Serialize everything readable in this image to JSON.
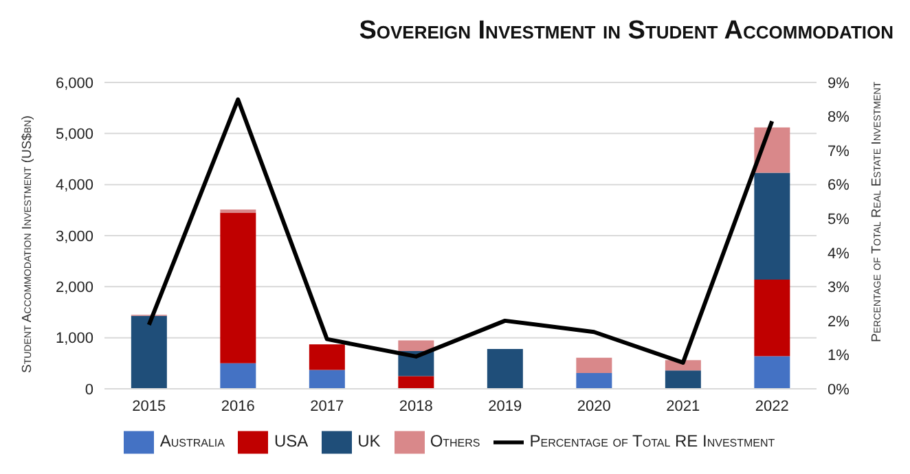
{
  "chart_data": {
    "type": "bar",
    "title": "Sovereign Investment in Student Accommodation",
    "ylabel": "Student Accommodation Investment (US$bn)",
    "y2label": "Percentage of Total Real Estate Investment",
    "categories": [
      "2015",
      "2016",
      "2017",
      "2018",
      "2019",
      "2020",
      "2021",
      "2022"
    ],
    "stacked": true,
    "series": [
      {
        "name": "Australia",
        "color": "#4472c4",
        "values": [
          0,
          500,
          370,
          0,
          0,
          310,
          0,
          640
        ]
      },
      {
        "name": "USA",
        "color": "#c00000",
        "values": [
          0,
          2950,
          500,
          250,
          0,
          0,
          0,
          1500
        ]
      },
      {
        "name": "UK",
        "color": "#1f4e79",
        "values": [
          1430,
          0,
          0,
          490,
          780,
          0,
          360,
          2090
        ]
      },
      {
        "name": "Others",
        "color": "#d9888a",
        "values": [
          20,
          60,
          0,
          210,
          0,
          300,
          200,
          890
        ]
      },
      {
        "name": "Percentage of Total RE Investment",
        "type": "line",
        "axis": "y2",
        "color": "#000000",
        "values": [
          1.88,
          8.5,
          1.46,
          0.95,
          2.0,
          1.67,
          0.77,
          7.86
        ]
      }
    ],
    "ylim": [
      0,
      6000
    ],
    "yticks": [
      {
        "value": 0,
        "label": "0"
      },
      {
        "value": 1000,
        "label": "1,000"
      },
      {
        "value": 2000,
        "label": "2,000"
      },
      {
        "value": 3000,
        "label": "3,000"
      },
      {
        "value": 4000,
        "label": "4,000"
      },
      {
        "value": 5000,
        "label": "5,000"
      },
      {
        "value": 6000,
        "label": "6,000"
      }
    ],
    "y2lim": [
      0,
      9
    ],
    "y2ticks": [
      {
        "value": 0,
        "label": "0%"
      },
      {
        "value": 1,
        "label": "1%"
      },
      {
        "value": 2,
        "label": "2%"
      },
      {
        "value": 3,
        "label": "3%"
      },
      {
        "value": 4,
        "label": "4%"
      },
      {
        "value": 5,
        "label": "5%"
      },
      {
        "value": 6,
        "label": "6%"
      },
      {
        "value": 7,
        "label": "7%"
      },
      {
        "value": 8,
        "label": "8%"
      },
      {
        "value": 9,
        "label": "9%"
      }
    ],
    "grid": "y",
    "legend": "bottom",
    "marker": "none"
  }
}
